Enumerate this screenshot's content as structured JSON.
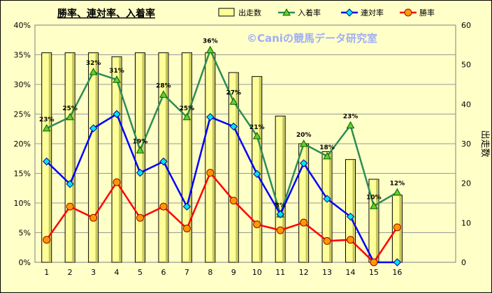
{
  "chart_data": {
    "type": "bar",
    "title": "勝率、連対率、入着率",
    "watermark": "©Caniの競馬データ研究室",
    "categories": [
      "1",
      "2",
      "3",
      "4",
      "5",
      "6",
      "7",
      "8",
      "9",
      "10",
      "11",
      "12",
      "13",
      "14",
      "15",
      "16"
    ],
    "y_left": {
      "ticks": [
        "0%",
        "5%",
        "10%",
        "15%",
        "20%",
        "25%",
        "30%",
        "35%",
        "40%"
      ],
      "ylim": [
        0,
        40
      ]
    },
    "y_right": {
      "label": "出走数",
      "ticks": [
        "0",
        "10",
        "20",
        "30",
        "40",
        "50",
        "60"
      ],
      "ylim": [
        0,
        60
      ]
    },
    "grid": true,
    "legend_position": "top",
    "series": [
      {
        "name": "出走数",
        "kind": "bar",
        "axis": "right",
        "color": "#ffff99",
        "values": [
          53,
          53,
          53,
          52,
          53,
          53,
          53,
          53,
          48,
          47,
          37,
          30,
          28,
          26,
          21,
          17
        ]
      },
      {
        "name": "入着率",
        "kind": "line",
        "axis": "left",
        "color": "#2e8b57",
        "marker_fill": "#66cc33",
        "values": [
          22.6,
          24.5,
          32.1,
          30.8,
          18.9,
          28.3,
          24.5,
          35.8,
          27.1,
          21.3,
          8.1,
          20.0,
          17.9,
          23.1,
          9.5,
          11.8
        ],
        "data_labels": [
          "23%",
          "25%",
          "32%",
          "31%",
          "19%",
          "28%",
          "25%",
          "36%",
          "27%",
          "21%",
          "8%",
          "20%",
          "18%",
          "23%",
          "10%",
          "12%"
        ]
      },
      {
        "name": "連対率",
        "kind": "line",
        "axis": "left",
        "color": "#0000ff",
        "marker_fill": "#00e5ee",
        "values": [
          17.0,
          13.2,
          22.6,
          25.0,
          15.1,
          17.0,
          9.4,
          24.5,
          22.9,
          14.9,
          8.1,
          16.7,
          10.7,
          7.7,
          0.0,
          0.0
        ]
      },
      {
        "name": "勝率",
        "kind": "line",
        "axis": "left",
        "color": "#ff0000",
        "marker_fill": "#ff9900",
        "values": [
          3.8,
          9.4,
          7.5,
          13.5,
          7.5,
          9.4,
          5.7,
          15.1,
          10.4,
          6.4,
          5.4,
          6.7,
          3.6,
          3.8,
          0.0,
          5.9
        ]
      }
    ]
  }
}
